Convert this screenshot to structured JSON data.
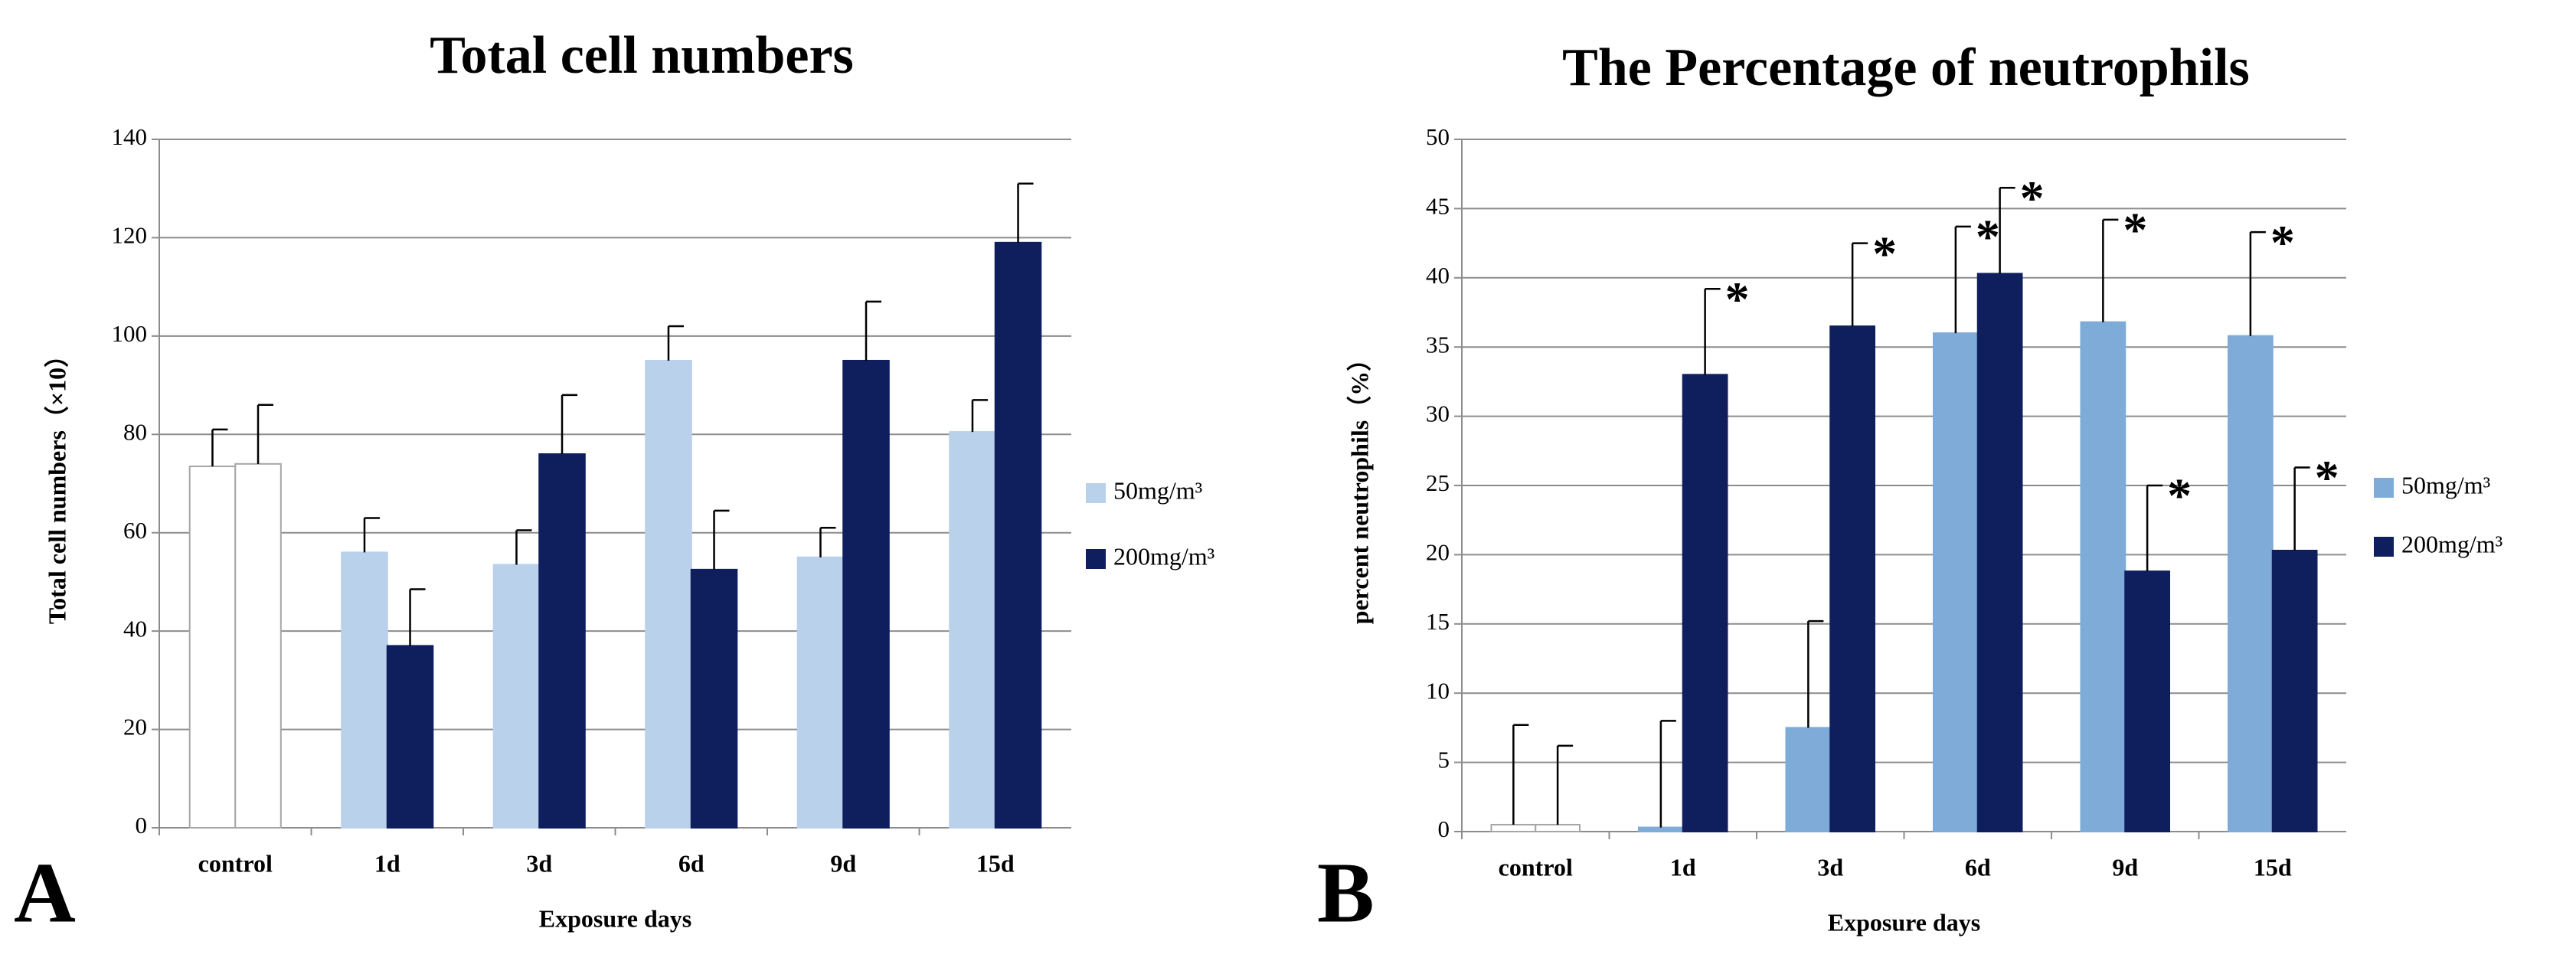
{
  "chart_data": [
    {
      "type": "bar",
      "panel": "A",
      "title": "Total cell numbers",
      "xlabel": "Exposure days",
      "ylabel": "Total cell numbers（×10）",
      "categories": [
        "control",
        "1d",
        "3d",
        "6d",
        "9d",
        "15d"
      ],
      "series": [
        {
          "name": "50mg/m³",
          "color": "#b9d1ea",
          "colors": [
            "#ffffff",
            "#b9d1ea",
            "#b9d1ea",
            "#b9d1ea",
            "#b9d1ea",
            "#b9d1ea"
          ],
          "values": [
            73.5,
            56,
            53.5,
            95,
            55,
            80.5
          ],
          "errors": [
            7.5,
            7,
            7,
            7,
            6,
            6.5
          ]
        },
        {
          "name": "200mg/m³",
          "color": "#0f1f5e",
          "colors": [
            "#ffffff",
            "#0f1f5e",
            "#0f1f5e",
            "#0f1f5e",
            "#0f1f5e",
            "#0f1f5e"
          ],
          "values": [
            74,
            37,
            76,
            52.5,
            95,
            119
          ],
          "errors": [
            12,
            11.5,
            12,
            12,
            12,
            12
          ]
        }
      ],
      "ylim": [
        0,
        140
      ],
      "yticks": [
        0,
        20,
        40,
        60,
        80,
        100,
        120,
        140
      ],
      "grid": true
    },
    {
      "type": "bar",
      "panel": "B",
      "title": "The Percentage of neutrophils",
      "xlabel": "Exposure days",
      "ylabel": "percent neutrophils（%）",
      "categories": [
        "control",
        "1d",
        "3d",
        "6d",
        "9d",
        "15d"
      ],
      "series": [
        {
          "name": "50mg/m³",
          "color": "#7eabd8",
          "colors": [
            "#ffffff",
            "#7eabd8",
            "#7eabd8",
            "#7eabd8",
            "#7eabd8",
            "#7eabd8"
          ],
          "values": [
            0.5,
            0.3,
            7.5,
            36,
            36.8,
            35.8
          ],
          "errors": [
            7.2,
            7.7,
            7.7,
            7.7,
            7.4,
            7.5
          ],
          "annotations": [
            null,
            null,
            null,
            "*",
            "*",
            "*"
          ]
        },
        {
          "name": "200mg/m³",
          "color": "#0f1f5e",
          "colors": [
            "#ffffff",
            "#0f1f5e",
            "#0f1f5e",
            "#0f1f5e",
            "#0f1f5e",
            "#0f1f5e"
          ],
          "values": [
            0.5,
            33,
            36.5,
            40.3,
            18.8,
            20.3
          ],
          "errors": [
            5.7,
            6.2,
            6,
            6.2,
            6.2,
            6
          ],
          "annotations": [
            null,
            "*",
            "*",
            "*",
            "*",
            "*"
          ]
        }
      ],
      "ylim": [
        0,
        50
      ],
      "yticks": [
        0,
        5,
        10,
        15,
        20,
        25,
        30,
        35,
        40,
        45,
        50
      ],
      "grid": true
    }
  ]
}
